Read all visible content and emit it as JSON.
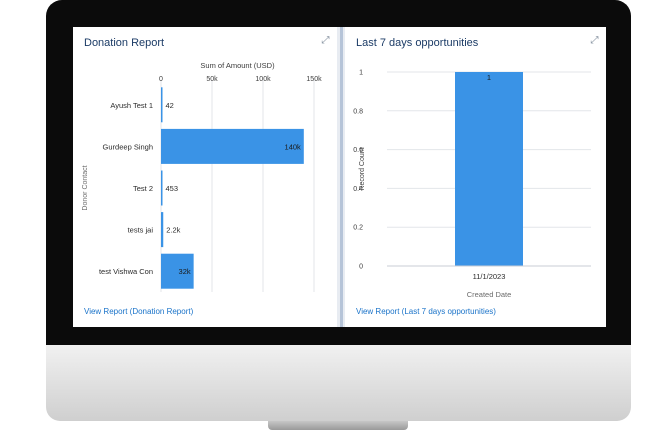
{
  "left_panel": {
    "title": "Donation Report",
    "expand_icon": "expand-icon",
    "view_link": "View Report (Donation Report)"
  },
  "right_panel": {
    "title": "Last 7 days opportunities",
    "expand_icon": "expand-icon",
    "view_link": "View Report (Last 7 days opportunities)"
  },
  "chart_data": [
    {
      "type": "bar",
      "orientation": "horizontal",
      "xlabel": "Sum of Amount (USD)",
      "ylabel": "Donor Contact",
      "x_ticks": [
        "0",
        "50k",
        "100k",
        "150k"
      ],
      "xlim": [
        0,
        150000
      ],
      "categories": [
        "Ayush Test 1",
        "Gurdeep Singh",
        "Test 2",
        "tests jai",
        "test Vishwa Con"
      ],
      "values": [
        42,
        140000,
        453,
        2200,
        32000
      ],
      "value_labels": [
        "42",
        "140k",
        "453",
        "2.2k",
        "32k"
      ],
      "color": "#3a93e6",
      "grid": true
    },
    {
      "type": "bar",
      "orientation": "vertical",
      "xlabel": "Created Date",
      "ylabel": "Record Count",
      "y_ticks": [
        "0",
        "0.2",
        "0.4",
        "0.6",
        "0.8",
        "1"
      ],
      "ylim": [
        0,
        1
      ],
      "categories": [
        "11/1/2023"
      ],
      "values": [
        1
      ],
      "value_labels": [
        "1"
      ],
      "color": "#3a93e6",
      "grid": true
    }
  ]
}
